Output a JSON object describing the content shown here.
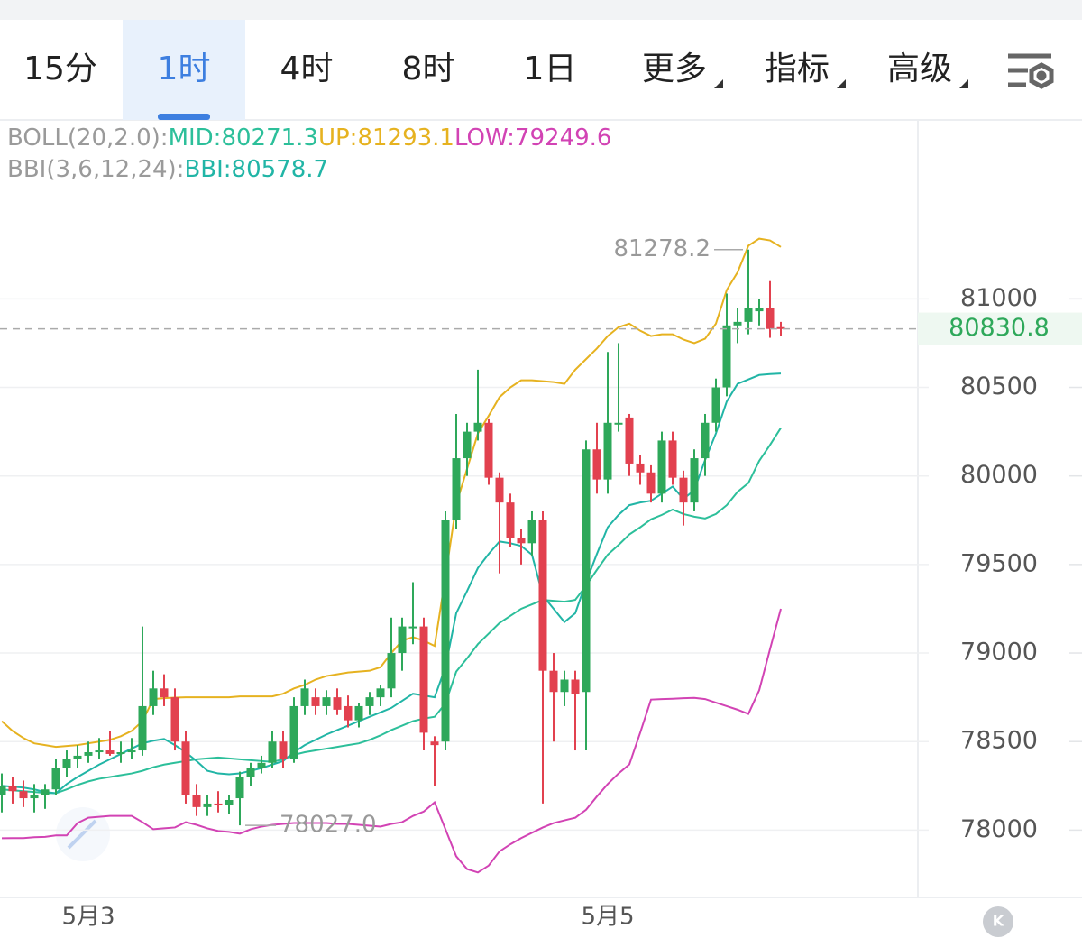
{
  "toolbar": {
    "tabs": [
      "15分",
      "1时",
      "4时",
      "8时",
      "1日",
      "更多",
      "指标",
      "高级"
    ],
    "active": 1,
    "dropdown_from": 5
  },
  "chart_data": {
    "type": "candlestick",
    "indicators": [
      {
        "label": "BOLL(20,2.0):",
        "items": [
          "MID:80271.3",
          "UP:81293.1",
          "LOW:79249.6"
        ],
        "series": [
          0,
          1,
          2
        ]
      },
      {
        "label": "BBI(3,6,12,24):",
        "items": [
          "BBI:80578.7"
        ],
        "series": [
          3
        ]
      }
    ],
    "categories": [
      null,
      null,
      null,
      null,
      null,
      null,
      null,
      null,
      "5月3",
      null,
      null,
      null,
      null,
      null,
      null,
      null,
      null,
      null,
      null,
      null,
      null,
      null,
      null,
      null,
      null,
      null,
      null,
      null,
      null,
      null,
      null,
      null,
      null,
      null,
      null,
      null,
      null,
      null,
      null,
      null,
      null,
      null,
      null,
      null,
      null,
      null,
      null,
      null,
      null,
      null,
      null,
      null,
      null,
      null,
      null,
      null,
      "5月5",
      null,
      null,
      null,
      null,
      null,
      null,
      null,
      null,
      null,
      null,
      null,
      null,
      null,
      null,
      null,
      null
    ],
    "open": [
      78200,
      78250,
      78220,
      78180,
      78200,
      78230,
      78350,
      78400,
      78420,
      78440,
      78450,
      78430,
      78440,
      78450,
      78700,
      78800,
      78750,
      78500,
      78200,
      78130,
      78150,
      78140,
      78180,
      78300,
      78350,
      78380,
      78500,
      78400,
      78700,
      78750,
      78700,
      78750,
      78700,
      78620,
      78700,
      78750,
      78800,
      79000,
      79150,
      79150,
      78500,
      78500,
      79750,
      80100,
      80250,
      80300,
      79990,
      79850,
      79650,
      79620,
      79750,
      78900,
      78780,
      78850,
      78780,
      80150,
      79980,
      80300,
      80330,
      80070,
      80020,
      79900,
      80200,
      79990,
      79850,
      80100,
      80300,
      80500,
      80850,
      80870,
      80930,
      80950,
      80840
    ],
    "high": [
      78320,
      78300,
      78280,
      78260,
      78260,
      78400,
      78450,
      78480,
      78500,
      78520,
      78560,
      78500,
      78520,
      79150,
      78900,
      78880,
      78800,
      78560,
      78260,
      78200,
      78220,
      78200,
      78330,
      78380,
      78420,
      78560,
      78560,
      78750,
      78850,
      78800,
      78790,
      78800,
      78760,
      78720,
      78780,
      78820,
      79200,
      79200,
      79400,
      79200,
      78530,
      79800,
      80350,
      80300,
      80600,
      80320,
      80020,
      79900,
      79700,
      79800,
      79800,
      79000,
      78900,
      78900,
      80200,
      80300,
      80700,
      80750,
      80350,
      80120,
      80060,
      80250,
      80250,
      80030,
      80150,
      80350,
      80550,
      81030,
      80950,
      81278.2,
      81000,
      81100,
      80870
    ],
    "low": [
      78100,
      78150,
      78130,
      78100,
      78120,
      78200,
      78300,
      78350,
      78380,
      78400,
      78420,
      78380,
      78400,
      78420,
      78650,
      78700,
      78450,
      78150,
      78080,
      78080,
      78100,
      78090,
      78027.0,
      78250,
      78320,
      78350,
      78350,
      78380,
      78650,
      78650,
      78650,
      78650,
      78580,
      78580,
      78650,
      78700,
      78750,
      78900,
      79050,
      78450,
      78250,
      78450,
      79700,
      80000,
      80200,
      79950,
      79450,
      79600,
      79500,
      79550,
      78150,
      78500,
      78700,
      78450,
      78450,
      79900,
      79900,
      80250,
      80000,
      79950,
      79850,
      79850,
      79950,
      79720,
      79800,
      80000,
      80250,
      80450,
      80750,
      80800,
      80850,
      80780,
      80790
    ],
    "close": [
      78250,
      78220,
      78180,
      78200,
      78230,
      78350,
      78400,
      78420,
      78440,
      78450,
      78430,
      78440,
      78450,
      78700,
      78800,
      78750,
      78500,
      78200,
      78130,
      78150,
      78140,
      78170,
      78300,
      78350,
      78380,
      78500,
      78400,
      78700,
      78800,
      78700,
      78750,
      78680,
      78620,
      78700,
      78750,
      78800,
      79000,
      79150,
      79150,
      78550,
      78480,
      79750,
      80100,
      80250,
      80300,
      79990,
      79850,
      79650,
      79620,
      79750,
      78900,
      78780,
      78850,
      78770,
      80150,
      79980,
      80300,
      80300,
      80070,
      80020,
      79900,
      80200,
      79990,
      79850,
      80100,
      80300,
      80500,
      80850,
      80870,
      80950,
      80950,
      80830,
      80830
    ],
    "up_color": "#2ea85a",
    "down_color": "#e2414f",
    "series": [
      {
        "name": "MID",
        "color": "#2cbf9a",
        "values": [
          78230,
          78225,
          78220,
          78215,
          78210,
          78208,
          78230,
          78255,
          78275,
          78290,
          78300,
          78310,
          78320,
          78335,
          78355,
          78370,
          78380,
          78390,
          78400,
          78405,
          78410,
          78405,
          78400,
          78395,
          78390,
          78385,
          78400,
          78425,
          78440,
          78450,
          78460,
          78470,
          78480,
          78490,
          78510,
          78535,
          78565,
          78590,
          78615,
          78630,
          78640,
          78715,
          78895,
          78970,
          79050,
          79110,
          79170,
          79210,
          79250,
          79275,
          79300,
          79295,
          79290,
          79300,
          79380,
          79470,
          79555,
          79610,
          79670,
          79710,
          79755,
          79780,
          79810,
          79785,
          79770,
          79760,
          79785,
          79835,
          79910,
          79960,
          80085,
          80175,
          80271.3
        ]
      },
      {
        "name": "UP",
        "color": "#e6b220",
        "values": [
          78615,
          78560,
          78520,
          78490,
          78480,
          78470,
          78475,
          78480,
          78490,
          78500,
          78510,
          78530,
          78560,
          78615,
          78740,
          78745,
          78748,
          78750,
          78750,
          78750,
          78750,
          78750,
          78755,
          78755,
          78755,
          78755,
          78770,
          78800,
          78820,
          78850,
          78870,
          78880,
          78890,
          78895,
          78900,
          78920,
          79000,
          79070,
          79090,
          79070,
          79040,
          79430,
          79840,
          80040,
          80240,
          80340,
          80445,
          80500,
          80540,
          80540,
          80535,
          80530,
          80520,
          80600,
          80660,
          80720,
          80790,
          80840,
          80860,
          80820,
          80790,
          80800,
          80800,
          80770,
          80750,
          80775,
          80860,
          81050,
          81150,
          81300,
          81340,
          81330,
          81293.1
        ]
      },
      {
        "name": "LOW",
        "color": "#d243b4",
        "values": [
          77954,
          77955,
          77955,
          77960,
          77962,
          77970,
          77970,
          78040,
          78070,
          78075,
          78080,
          78080,
          78080,
          78045,
          78005,
          78010,
          78015,
          78045,
          78030,
          78010,
          77995,
          77990,
          77980,
          78005,
          78020,
          78030,
          78035,
          78040,
          78040,
          78040,
          78040,
          78035,
          78035,
          78030,
          78025,
          78020,
          78035,
          78045,
          78080,
          78105,
          78157,
          78005,
          77852,
          77780,
          77761,
          77800,
          77880,
          77920,
          77955,
          77985,
          78015,
          78040,
          78055,
          78070,
          78115,
          78190,
          78260,
          78320,
          78371,
          78550,
          78737,
          78740,
          78742,
          78745,
          78747,
          78740,
          78720,
          78700,
          78680,
          78656,
          78790,
          79022,
          79249.6
        ]
      },
      {
        "name": "BBI",
        "color": "#21b5a6",
        "values": [
          78250,
          78245,
          78240,
          78230,
          78215,
          78208,
          78260,
          78300,
          78335,
          78370,
          78400,
          78430,
          78460,
          78490,
          78505,
          78515,
          78480,
          78440,
          78390,
          78335,
          78320,
          78315,
          78320,
          78335,
          78350,
          78370,
          78390,
          78440,
          78480,
          78510,
          78540,
          78565,
          78590,
          78615,
          78640,
          78665,
          78690,
          78730,
          78770,
          78760,
          78750,
          78920,
          79225,
          79350,
          79480,
          79560,
          79630,
          79620,
          79605,
          79555,
          79325,
          79250,
          79175,
          79225,
          79400,
          79560,
          79710,
          79780,
          79835,
          79850,
          79860,
          79900,
          79940,
          79870,
          79920,
          80090,
          80240,
          80420,
          80520,
          80545,
          80570,
          80575,
          80578.7
        ]
      }
    ],
    "annotations": [
      {
        "text": "81278.2"
      },
      {
        "text": "78027.0"
      }
    ],
    "last_price": 80830.8,
    "ylim": [
      77620,
      82000
    ],
    "yticks": [
      78000,
      78500,
      79000,
      79500,
      80000,
      80500,
      81000
    ],
    "grid": true
  }
}
